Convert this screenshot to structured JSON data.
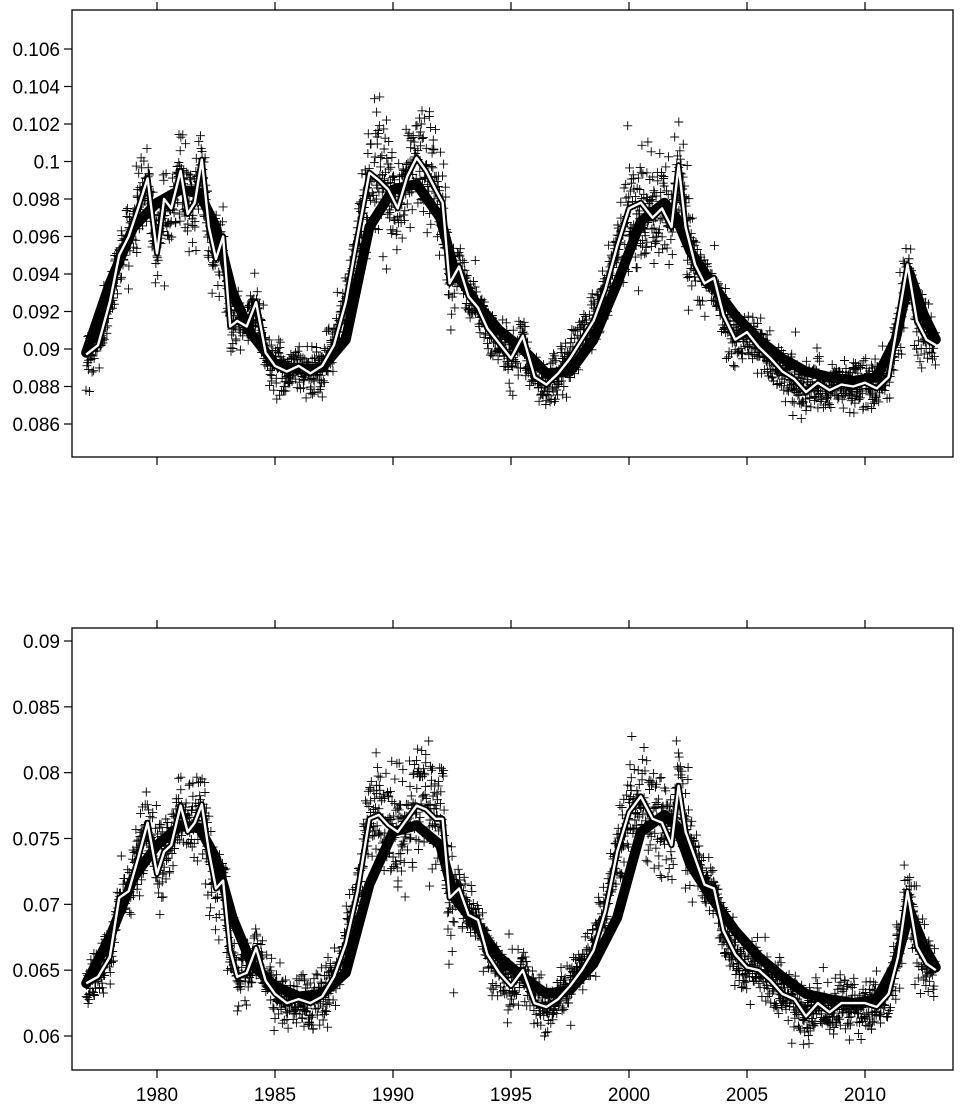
{
  "chart_data": [
    {
      "type": "scatter",
      "title": "",
      "xlabel": "",
      "ylabel": "",
      "xlim": [
        1976.6,
        2013.3
      ],
      "ylim": [
        0.0848,
        0.1077
      ],
      "yticks": [
        "0.086",
        "0.088",
        "0.09",
        "0.092",
        "0.094",
        "0.096",
        "0.098",
        "0.1",
        "0.102",
        "0.104",
        "0.106"
      ],
      "xticks": [
        "1980",
        "1985",
        "1990",
        "1995",
        "2000",
        "2005",
        "2010"
      ],
      "show_x_tick_labels": false,
      "grid": false,
      "legend": "none",
      "marker": "+",
      "series": [
        {
          "kind": "smoothed-line-white",
          "x": [
            1977.0,
            1977.5,
            1978.0,
            1978.4,
            1978.8,
            1979.2,
            1979.6,
            1980.0,
            1980.3,
            1980.6,
            1981.0,
            1981.3,
            1981.6,
            1981.9,
            1982.2,
            1982.5,
            1982.8,
            1983.1,
            1983.4,
            1983.8,
            1984.2,
            1984.6,
            1985.0,
            1985.5,
            1986.0,
            1986.5,
            1987.0,
            1987.5,
            1988.0,
            1988.5,
            1989.0,
            1989.4,
            1989.8,
            1990.2,
            1990.6,
            1991.0,
            1991.4,
            1991.8,
            1992.1,
            1992.4,
            1992.8,
            1993.2,
            1993.6,
            1994.0,
            1994.5,
            1995.0,
            1995.5,
            1996.0,
            1996.5,
            1997.0,
            1997.5,
            1998.0,
            1998.5,
            1999.0,
            1999.5,
            2000.0,
            2000.5,
            2001.0,
            2001.4,
            2001.8,
            2002.1,
            2002.4,
            2002.8,
            2003.2,
            2003.6,
            2004.0,
            2004.5,
            2005.0,
            2005.5,
            2006.0,
            2006.5,
            2007.0,
            2007.5,
            2008.0,
            2008.5,
            2009.0,
            2009.5,
            2010.0,
            2010.5,
            2011.0,
            2011.4,
            2011.8,
            2012.2,
            2012.6,
            2013.0
          ],
          "y": [
            0.0897,
            0.0902,
            0.0925,
            0.095,
            0.096,
            0.0975,
            0.0991,
            0.0951,
            0.098,
            0.0975,
            0.0995,
            0.0972,
            0.0978,
            0.1001,
            0.0965,
            0.0948,
            0.096,
            0.0912,
            0.0915,
            0.0912,
            0.0925,
            0.0898,
            0.0891,
            0.0888,
            0.0891,
            0.0887,
            0.0891,
            0.0902,
            0.0925,
            0.096,
            0.0994,
            0.099,
            0.0985,
            0.0975,
            0.0992,
            0.1002,
            0.0995,
            0.0985,
            0.0978,
            0.0935,
            0.0944,
            0.0928,
            0.0922,
            0.0911,
            0.0903,
            0.0895,
            0.0907,
            0.0885,
            0.0881,
            0.0887,
            0.0895,
            0.0905,
            0.0915,
            0.0932,
            0.0955,
            0.0975,
            0.0978,
            0.097,
            0.0975,
            0.0965,
            0.0998,
            0.0965,
            0.0945,
            0.0935,
            0.0938,
            0.0918,
            0.0905,
            0.0909,
            0.0901,
            0.0895,
            0.0888,
            0.0884,
            0.0877,
            0.0882,
            0.0878,
            0.0881,
            0.088,
            0.0882,
            0.0879,
            0.0885,
            0.0915,
            0.0945,
            0.0915,
            0.0905,
            0.0902
          ]
        },
        {
          "kind": "trend-band-black",
          "x": [
            1977.0,
            1978.0,
            1979.0,
            1980.0,
            1981.0,
            1981.8,
            1982.5,
            1983.2,
            1984.0,
            1985.0,
            1986.0,
            1987.0,
            1988.0,
            1989.0,
            1990.0,
            1991.0,
            1992.0,
            1992.6,
            1993.5,
            1994.5,
            1995.5,
            1996.5,
            1997.5,
            1998.5,
            1999.5,
            2000.5,
            2001.5,
            2002.0,
            2002.6,
            2003.5,
            2004.5,
            2005.5,
            2006.5,
            2007.5,
            2008.5,
            2009.5,
            2010.5,
            2011.3,
            2011.9,
            2012.5,
            2013.0
          ],
          "y": [
            0.0898,
            0.0935,
            0.0965,
            0.0978,
            0.0985,
            0.0983,
            0.0965,
            0.093,
            0.0908,
            0.0892,
            0.0889,
            0.089,
            0.0905,
            0.0965,
            0.0985,
            0.0988,
            0.097,
            0.0942,
            0.0925,
            0.091,
            0.09,
            0.0887,
            0.0888,
            0.0905,
            0.0935,
            0.0968,
            0.0978,
            0.097,
            0.0952,
            0.0935,
            0.0918,
            0.0905,
            0.0895,
            0.0888,
            0.0885,
            0.0883,
            0.0885,
            0.0905,
            0.094,
            0.0918,
            0.0905
          ]
        }
      ]
    },
    {
      "type": "scatter",
      "title": "",
      "xlabel": "",
      "ylabel": "",
      "xlim": [
        1976.6,
        2013.3
      ],
      "ylim": [
        0.0577,
        0.0911
      ],
      "yticks": [
        "0.06",
        "0.065",
        "0.07",
        "0.075",
        "0.08",
        "0.085",
        "0.09"
      ],
      "xticks": [
        "1980",
        "1985",
        "1990",
        "1995",
        "2000",
        "2005",
        "2010"
      ],
      "show_x_tick_labels": true,
      "grid": false,
      "legend": "none",
      "marker": "+",
      "series": [
        {
          "kind": "smoothed-line-white",
          "x": [
            1977.0,
            1977.5,
            1978.0,
            1978.4,
            1978.8,
            1979.2,
            1979.6,
            1980.0,
            1980.3,
            1980.6,
            1981.0,
            1981.3,
            1981.6,
            1981.9,
            1982.2,
            1982.5,
            1982.8,
            1983.1,
            1983.4,
            1983.8,
            1984.2,
            1984.6,
            1985.0,
            1985.5,
            1986.0,
            1986.5,
            1987.0,
            1987.5,
            1988.0,
            1988.5,
            1989.0,
            1989.4,
            1989.8,
            1990.2,
            1990.6,
            1991.0,
            1991.4,
            1991.8,
            1992.1,
            1992.4,
            1992.8,
            1993.2,
            1993.6,
            1994.0,
            1994.5,
            1995.0,
            1995.5,
            1996.0,
            1996.5,
            1997.0,
            1997.5,
            1998.0,
            1998.5,
            1999.0,
            1999.5,
            2000.0,
            2000.5,
            2001.0,
            2001.4,
            2001.8,
            2002.1,
            2002.4,
            2002.8,
            2003.2,
            2003.6,
            2004.0,
            2004.5,
            2005.0,
            2005.5,
            2006.0,
            2006.5,
            2007.0,
            2007.5,
            2008.0,
            2008.5,
            2009.0,
            2009.5,
            2010.0,
            2010.5,
            2011.0,
            2011.4,
            2011.8,
            2012.2,
            2012.6,
            2013.0
          ],
          "y": [
            0.064,
            0.0645,
            0.066,
            0.0705,
            0.071,
            0.0735,
            0.0762,
            0.0723,
            0.074,
            0.0745,
            0.0775,
            0.0755,
            0.0762,
            0.0776,
            0.074,
            0.0712,
            0.0718,
            0.0665,
            0.0645,
            0.0648,
            0.0667,
            0.0642,
            0.0632,
            0.0625,
            0.0628,
            0.0625,
            0.063,
            0.0645,
            0.067,
            0.071,
            0.0765,
            0.0768,
            0.076,
            0.0755,
            0.0765,
            0.0775,
            0.0772,
            0.0765,
            0.0765,
            0.0705,
            0.0712,
            0.0692,
            0.0688,
            0.0662,
            0.0648,
            0.0638,
            0.065,
            0.0625,
            0.0622,
            0.0628,
            0.0638,
            0.065,
            0.0665,
            0.0695,
            0.074,
            0.077,
            0.0782,
            0.0765,
            0.0762,
            0.0745,
            0.079,
            0.0755,
            0.0735,
            0.0715,
            0.0712,
            0.068,
            0.0662,
            0.0652,
            0.065,
            0.0642,
            0.0632,
            0.0628,
            0.0615,
            0.0625,
            0.0618,
            0.0625,
            0.0625,
            0.0625,
            0.0622,
            0.0632,
            0.066,
            0.071,
            0.0668,
            0.0655,
            0.065
          ]
        },
        {
          "kind": "trend-band-black",
          "x": [
            1977.0,
            1978.0,
            1979.0,
            1980.0,
            1981.0,
            1981.8,
            1982.5,
            1983.2,
            1984.0,
            1985.0,
            1986.0,
            1987.0,
            1988.0,
            1989.0,
            1990.0,
            1991.0,
            1992.0,
            1992.6,
            1993.5,
            1994.5,
            1995.5,
            1996.5,
            1997.5,
            1998.5,
            1999.5,
            2000.5,
            2001.5,
            2002.0,
            2002.6,
            2003.5,
            2004.5,
            2005.5,
            2006.5,
            2007.5,
            2008.5,
            2009.5,
            2010.5,
            2011.3,
            2011.9,
            2012.5,
            2013.0
          ],
          "y": [
            0.064,
            0.0675,
            0.072,
            0.0745,
            0.076,
            0.0758,
            0.0735,
            0.069,
            0.0655,
            0.0638,
            0.063,
            0.0632,
            0.0648,
            0.0715,
            0.0755,
            0.076,
            0.0745,
            0.0705,
            0.0685,
            0.066,
            0.0645,
            0.0632,
            0.0635,
            0.0655,
            0.069,
            0.0755,
            0.0768,
            0.076,
            0.073,
            0.0705,
            0.068,
            0.066,
            0.0645,
            0.0632,
            0.0628,
            0.0625,
            0.0628,
            0.0655,
            0.0695,
            0.0668,
            0.0652
          ]
        }
      ]
    }
  ]
}
